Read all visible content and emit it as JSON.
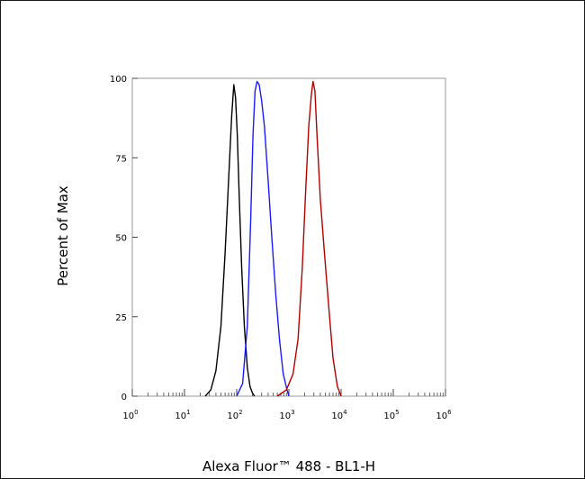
{
  "chart_data": {
    "type": "line",
    "xlabel": "Alexa Fluor™ 488 - BL1-H",
    "ylabel": "Percent of Max",
    "xscale": "log",
    "xlim": [
      1,
      1000000
    ],
    "ylim": [
      0,
      100
    ],
    "x_ticks": [
      {
        "base": "10",
        "exp": "0"
      },
      {
        "base": "10",
        "exp": "1"
      },
      {
        "base": "10",
        "exp": "2"
      },
      {
        "base": "10",
        "exp": "3"
      },
      {
        "base": "10",
        "exp": "4"
      },
      {
        "base": "10",
        "exp": "5"
      },
      {
        "base": "10",
        "exp": "6"
      }
    ],
    "y_ticks": [
      "0",
      "25",
      "50",
      "75",
      "100"
    ],
    "grid": false,
    "series": [
      {
        "color": "#000000",
        "x": [
          25,
          32,
          40,
          50,
          60,
          70,
          80,
          88,
          95,
          103,
          112,
          125,
          140,
          160,
          180,
          200,
          220
        ],
        "y": [
          0,
          2,
          8,
          22,
          45,
          68,
          88,
          98,
          94,
          82,
          62,
          40,
          22,
          9,
          3,
          1,
          0
        ]
      },
      {
        "color": "#1a1aff",
        "x": [
          100,
          130,
          160,
          185,
          205,
          225,
          245,
          270,
          300,
          340,
          400,
          470,
          560,
          660,
          780,
          920,
          1000
        ],
        "y": [
          0,
          4,
          22,
          55,
          82,
          96,
          99,
          98,
          93,
          85,
          68,
          50,
          32,
          18,
          7,
          2,
          0
        ]
      },
      {
        "color": "#b30000",
        "x": [
          600,
          900,
          1200,
          1500,
          1800,
          2100,
          2400,
          2700,
          2900,
          3150,
          3500,
          4000,
          4800,
          5800,
          7000,
          8500,
          10000
        ],
        "y": [
          0,
          2,
          7,
          18,
          40,
          65,
          85,
          95,
          99,
          96,
          80,
          62,
          45,
          28,
          12,
          3,
          0
        ]
      }
    ]
  }
}
